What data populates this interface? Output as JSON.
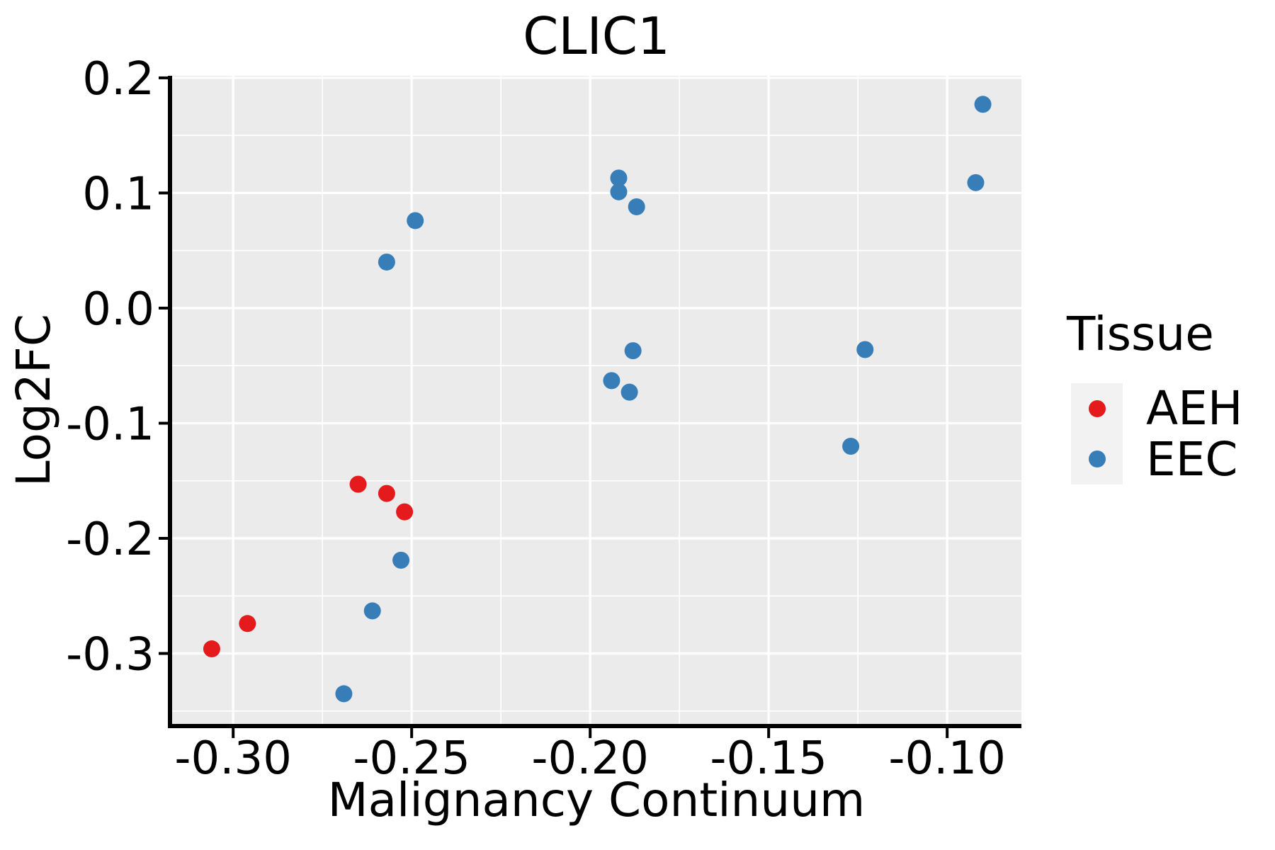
{
  "chart_data": {
    "type": "scatter",
    "title": "CLIC1",
    "xlabel": "Malignancy Continuum",
    "ylabel": "Log2FC",
    "x_range": [
      -0.3171,
      -0.0792
    ],
    "y_range": [
      -0.3612,
      0.2018
    ],
    "x_ticks": [
      -0.3,
      -0.25,
      -0.2,
      -0.15,
      -0.1
    ],
    "x_tick_labels": [
      "-0.30",
      "-0.25",
      "-0.20",
      "-0.15",
      "-0.10"
    ],
    "x_minor_ticks": [
      -0.275,
      -0.225,
      -0.175,
      -0.125
    ],
    "y_ticks": [
      0.2,
      0.1,
      0.0,
      -0.1,
      -0.2,
      -0.3
    ],
    "y_tick_labels": [
      "0.2",
      "0.1",
      "0.0",
      "-0.1",
      "-0.2",
      "-0.3"
    ],
    "y_minor_ticks": [
      0.15,
      0.05,
      -0.05,
      -0.15,
      -0.25,
      -0.35
    ],
    "grid": true,
    "panel_background": "#EBEBEB",
    "grid_color": "#FFFFFF",
    "axis_color": "#000000",
    "legend_key_background": "#F2F2F2",
    "point_radius": 12,
    "legend": {
      "title": "Tissue",
      "position": "right"
    },
    "series": [
      {
        "name": "AEH",
        "color": "#E41A1C",
        "points": [
          [
            -0.306,
            -0.296
          ],
          [
            -0.296,
            -0.274
          ],
          [
            -0.265,
            -0.153
          ],
          [
            -0.257,
            -0.161
          ],
          [
            -0.252,
            -0.177
          ]
        ]
      },
      {
        "name": "EEC",
        "color": "#377EB8",
        "points": [
          [
            -0.269,
            -0.335
          ],
          [
            -0.261,
            -0.263
          ],
          [
            -0.253,
            -0.219
          ],
          [
            -0.257,
            0.04
          ],
          [
            -0.249,
            0.076
          ],
          [
            -0.194,
            -0.063
          ],
          [
            -0.189,
            -0.073
          ],
          [
            -0.188,
            -0.037
          ],
          [
            -0.192,
            0.113
          ],
          [
            -0.192,
            0.101
          ],
          [
            -0.187,
            0.088
          ],
          [
            -0.127,
            -0.12
          ],
          [
            -0.123,
            -0.036
          ],
          [
            -0.092,
            0.109
          ],
          [
            -0.09,
            0.177
          ]
        ]
      }
    ]
  }
}
